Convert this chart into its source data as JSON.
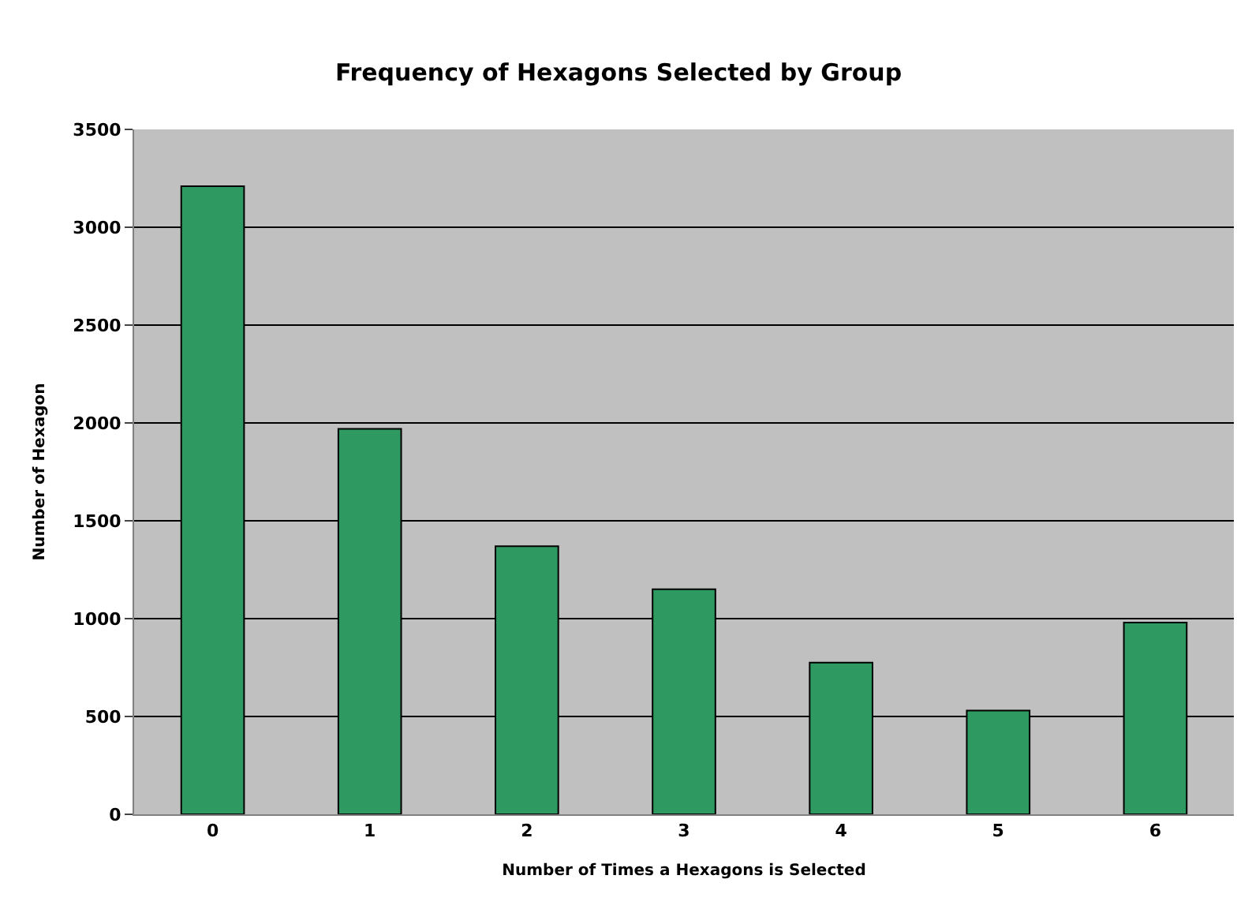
{
  "chart_data": {
    "type": "bar",
    "title": "Frequency of Hexagons Selected by Group",
    "xlabel": "Number of Times a Hexagons is Selected",
    "ylabel": "Number of Hexagon",
    "categories": [
      "0",
      "1",
      "2",
      "3",
      "4",
      "5",
      "6"
    ],
    "values": [
      3210,
      1970,
      1370,
      1150,
      775,
      530,
      980
    ],
    "color": "#2e9960",
    "ylim": [
      0,
      3500
    ],
    "yticks": [
      0,
      500,
      1000,
      1500,
      2000,
      2500,
      3000,
      3500
    ],
    "grid": "y"
  }
}
